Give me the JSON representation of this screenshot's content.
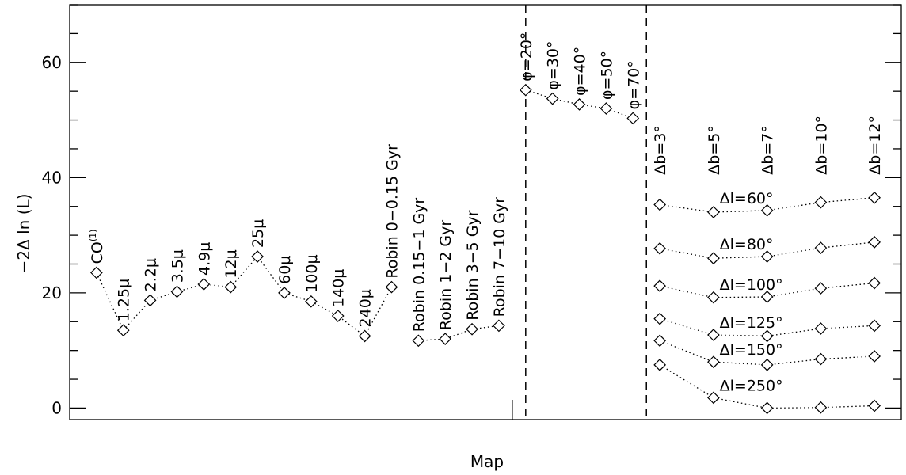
{
  "chart_data": {
    "type": "scatter",
    "title": "",
    "xlabel": "Map",
    "ylabel": "−2Δ ln (L)",
    "ylim": [
      -2,
      70
    ],
    "xlim": [
      0.0,
      31.0
    ],
    "yticks": [
      0,
      20,
      40,
      60
    ],
    "groups": [
      {
        "name": "maps",
        "connected": true,
        "points": [
          {
            "x": 1,
            "y": 23.5,
            "label": "CO",
            "sup": "(1)"
          },
          {
            "x": 2,
            "y": 13.5,
            "label": "1.25μ"
          },
          {
            "x": 3,
            "y": 18.7,
            "label": "2.2μ"
          },
          {
            "x": 4,
            "y": 20.2,
            "label": "3.5μ"
          },
          {
            "x": 5,
            "y": 21.5,
            "label": "4.9μ"
          },
          {
            "x": 6,
            "y": 21.0,
            "label": "12μ"
          },
          {
            "x": 7,
            "y": 26.3,
            "label": "25μ"
          },
          {
            "x": 8,
            "y": 20.0,
            "label": "60μ"
          },
          {
            "x": 9,
            "y": 18.5,
            "label": "100μ"
          },
          {
            "x": 10,
            "y": 16.0,
            "label": "140μ"
          },
          {
            "x": 11,
            "y": 12.5,
            "label": "240μ"
          },
          {
            "x": 12,
            "y": 21.0,
            "label": "Robin 0−0.15 Gyr"
          }
        ]
      },
      {
        "name": "robin",
        "connected": true,
        "points": [
          {
            "x": 13,
            "y": 11.7,
            "label": "Robin 0.15−1 Gyr"
          },
          {
            "x": 14,
            "y": 12.0,
            "label": "Robin 1−2 Gyr"
          },
          {
            "x": 15,
            "y": 13.7,
            "label": "Robin 3−5 Gyr"
          },
          {
            "x": 16,
            "y": 14.3,
            "label": "Robin 7−10 Gyr"
          }
        ]
      },
      {
        "name": "phi",
        "connected": true,
        "points": [
          {
            "x": 17,
            "y": 55.2,
            "label": "φ=20°"
          },
          {
            "x": 18,
            "y": 53.7,
            "label": "φ=30°"
          },
          {
            "x": 19,
            "y": 52.7,
            "label": "φ=40°"
          },
          {
            "x": 20,
            "y": 52.0,
            "label": "φ=50°"
          },
          {
            "x": 21,
            "y": 50.3,
            "label": "φ=70°"
          }
        ]
      }
    ],
    "column_labels": [
      {
        "x": 22,
        "label": "Δb=3°"
      },
      {
        "x": 24,
        "label": "Δb=5°"
      },
      {
        "x": 26,
        "label": "Δb=7°"
      },
      {
        "x": 28,
        "label": "Δb=10°"
      },
      {
        "x": 30,
        "label": "Δb=12°"
      }
    ],
    "series": [
      {
        "name": "Δl=60°",
        "x": [
          22,
          24,
          26,
          28,
          30
        ],
        "values": [
          35.3,
          34.0,
          34.3,
          35.7,
          36.5
        ]
      },
      {
        "name": "Δl=80°",
        "x": [
          22,
          24,
          26,
          28,
          30
        ],
        "values": [
          27.7,
          26.0,
          26.3,
          27.8,
          28.8
        ]
      },
      {
        "name": "Δl=100°",
        "x": [
          22,
          24,
          26,
          28,
          30
        ],
        "values": [
          21.2,
          19.2,
          19.3,
          20.8,
          21.7
        ]
      },
      {
        "name": "Δl=125°",
        "x": [
          22,
          24,
          26,
          28,
          30
        ],
        "values": [
          15.5,
          12.7,
          12.5,
          13.8,
          14.3
        ]
      },
      {
        "name": "Δl=150°",
        "x": [
          22,
          24,
          26,
          28,
          30
        ],
        "values": [
          11.7,
          8.0,
          7.5,
          8.5,
          9.0
        ]
      },
      {
        "name": "Δl=250°",
        "x": [
          22,
          24,
          26,
          28,
          30
        ],
        "values": [
          7.5,
          1.8,
          0.0,
          0.1,
          0.4
        ]
      }
    ],
    "dividers": [
      {
        "x": 16.5,
        "style": "solid",
        "extent": "partial"
      },
      {
        "x": 17.0,
        "style": "dashed",
        "extent": "full"
      },
      {
        "x": 21.5,
        "style": "dashed",
        "extent": "full"
      }
    ],
    "grid": false,
    "legend": "none"
  }
}
